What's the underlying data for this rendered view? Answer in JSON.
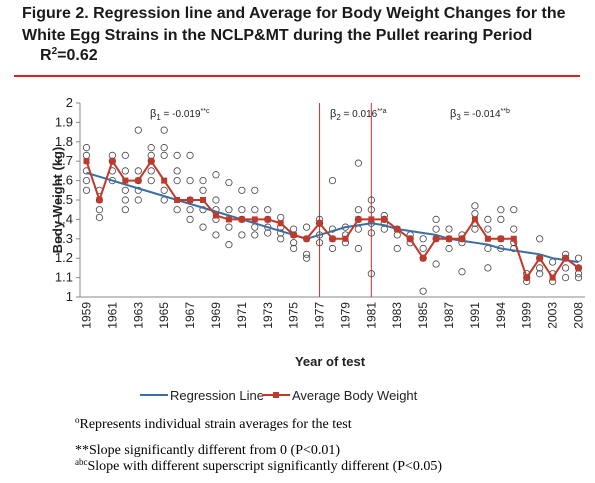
{
  "chart_data": {
    "type": "line",
    "title_lines": [
      "Figure 2.  Regression line and Average for Body Weight Changes for the",
      "White Egg Strains in the NCLP&MT during the Pullet rearing Period"
    ],
    "r2": {
      "base": "R",
      "sup": "2",
      "text": "=0.62"
    },
    "y_label": "Body Weight (kg)",
    "x_label": "Year of test",
    "ylim": [
      1,
      2
    ],
    "yticks": [
      1,
      1.1,
      1.2,
      1.3,
      1.4,
      1.5,
      1.6,
      1.7,
      1.8,
      1.9,
      2
    ],
    "categories": [
      "1959",
      null,
      "1961",
      null,
      "1963",
      null,
      "1965",
      null,
      "1967",
      null,
      "1969",
      null,
      "1971",
      null,
      "1973",
      null,
      "1975",
      null,
      "1977",
      null,
      "1979",
      null,
      "1981",
      null,
      "1983",
      null,
      "1985",
      null,
      "1987",
      null,
      "1991",
      null,
      "1994",
      null,
      "1999",
      null,
      "2003",
      null,
      "2008"
    ],
    "series": [
      {
        "name": "Regression Line",
        "color": "#3a6ea5",
        "marker": false,
        "values": [
          1.64,
          1.62,
          1.6,
          1.58,
          1.56,
          1.54,
          1.52,
          1.5,
          1.48,
          1.46,
          1.44,
          1.42,
          1.4,
          1.38,
          1.36,
          1.34,
          1.32,
          1.3,
          1.32,
          1.34,
          1.36,
          1.37,
          1.38,
          1.37,
          1.35,
          1.34,
          1.33,
          1.32,
          1.3,
          1.29,
          1.28,
          1.27,
          1.25,
          1.24,
          1.23,
          1.22,
          1.2,
          1.19,
          1.18
        ]
      },
      {
        "name": "Average Body Weight",
        "color": "#c0392b",
        "marker": true,
        "values": [
          1.7,
          1.5,
          1.7,
          1.6,
          1.6,
          1.7,
          1.6,
          1.5,
          1.5,
          1.5,
          1.42,
          1.4,
          1.4,
          1.4,
          1.4,
          1.38,
          1.32,
          1.3,
          1.38,
          1.3,
          1.3,
          1.4,
          1.4,
          1.4,
          1.35,
          1.3,
          1.2,
          1.3,
          1.3,
          1.3,
          1.4,
          1.3,
          1.3,
          1.3,
          1.1,
          1.2,
          1.1,
          1.2,
          1.15
        ]
      }
    ],
    "strains": [
      [
        1.77,
        1.73,
        1.65,
        1.6,
        1.55
      ],
      [
        1.5,
        1.45,
        1.41,
        1.55
      ],
      [
        1.73,
        1.7,
        1.65,
        1.6
      ],
      [
        1.73,
        1.65,
        1.55,
        1.5,
        1.45
      ],
      [
        1.86,
        1.65,
        1.6,
        1.55,
        1.5
      ],
      [
        1.77,
        1.73,
        1.7,
        1.65,
        1.6
      ],
      [
        1.86,
        1.77,
        1.73,
        1.55,
        1.5
      ],
      [
        1.73,
        1.65,
        1.6,
        1.45
      ],
      [
        1.73,
        1.6,
        1.5,
        1.45,
        1.4
      ],
      [
        1.6,
        1.55,
        1.45,
        1.36
      ],
      [
        1.63,
        1.5,
        1.45,
        1.4,
        1.32
      ],
      [
        1.59,
        1.45,
        1.36,
        1.27
      ],
      [
        1.55,
        1.45,
        1.4,
        1.32
      ],
      [
        1.55,
        1.45,
        1.36,
        1.32
      ],
      [
        1.45,
        1.4,
        1.36,
        1.33
      ],
      [
        1.41,
        1.36,
        1.33,
        1.3
      ],
      [
        1.35,
        1.32,
        1.28,
        1.25
      ],
      [
        1.36,
        1.3,
        1.22,
        1.2
      ],
      [
        1.4,
        1.38,
        1.32,
        1.28
      ],
      [
        1.6,
        1.35,
        1.3,
        1.25
      ],
      [
        1.36,
        1.32,
        1.28
      ],
      [
        1.69,
        1.45,
        1.4,
        1.35,
        1.25
      ],
      [
        1.5,
        1.45,
        1.38,
        1.33,
        1.12
      ],
      [
        1.42,
        1.4,
        1.38,
        1.35
      ],
      [
        1.35,
        1.32,
        1.25
      ],
      [
        1.32,
        1.3,
        1.28
      ],
      [
        1.3,
        1.25,
        1.2,
        1.03
      ],
      [
        1.4,
        1.35,
        1.3,
        1.17
      ],
      [
        1.35,
        1.3,
        1.25
      ],
      [
        1.32,
        1.3,
        1.28,
        1.13
      ],
      [
        1.47,
        1.43,
        1.38,
        1.35
      ],
      [
        1.4,
        1.35,
        1.25,
        1.15
      ],
      [
        1.45,
        1.4,
        1.3,
        1.25
      ],
      [
        1.45,
        1.35,
        1.28,
        1.25
      ],
      [
        1.12,
        1.1,
        1.08
      ],
      [
        1.3,
        1.2,
        1.15,
        1.12
      ],
      [
        1.18,
        1.12,
        1.08
      ],
      [
        1.22,
        1.2,
        1.15,
        1.1
      ],
      [
        1.2,
        1.15,
        1.12,
        1.1
      ]
    ],
    "strain_marker": "o",
    "break_categories": [
      18,
      22
    ],
    "break_color": "#d9302a",
    "annotations": [
      {
        "symbol": "β",
        "sub": "1",
        "text": " = -0.019",
        "sup": "**c"
      },
      {
        "symbol": "β",
        "sub": "2",
        "text": " = 0.016",
        "sup": "**a"
      },
      {
        "symbol": "β",
        "sub": "3",
        "text": " = -0.014",
        "sup": "**b"
      }
    ],
    "footnotes": [
      {
        "sup": "o",
        "text": "Represents individual strain averages for the test"
      },
      {
        "sup": "",
        "text": "**Slope significantly different from 0 (P<0.01)"
      },
      {
        "sup": "abc",
        "text": "Slope with different superscript significantly different (P<0.05)"
      }
    ]
  }
}
